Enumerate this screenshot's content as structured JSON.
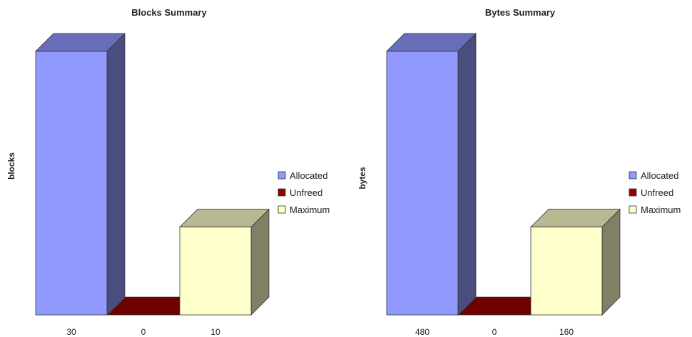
{
  "chart_data": [
    {
      "type": "bar",
      "title": "Blocks Summary",
      "ylabel": "blocks",
      "xlabel": "",
      "categories": [
        "30",
        "0",
        "10"
      ],
      "values": [
        30,
        0,
        10
      ],
      "series_names": [
        "Allocated",
        "Unfreed",
        "Maximum"
      ],
      "colors": [
        "#9199FF",
        "#990000",
        "#FFFFCC"
      ],
      "ylim": [
        0,
        30
      ],
      "grid": false,
      "legend_position": "right"
    },
    {
      "type": "bar",
      "title": "Bytes Summary",
      "ylabel": "bytes",
      "xlabel": "",
      "categories": [
        "480",
        "0",
        "160"
      ],
      "values": [
        480,
        0,
        160
      ],
      "series_names": [
        "Allocated",
        "Unfreed",
        "Maximum"
      ],
      "colors": [
        "#9199FF",
        "#990000",
        "#FFFFCC"
      ],
      "ylim": [
        0,
        480
      ],
      "grid": false,
      "legend_position": "right"
    }
  ]
}
